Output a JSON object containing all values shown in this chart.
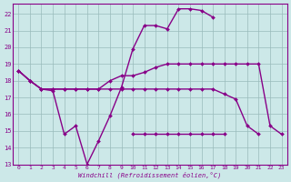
{
  "xlabel": "Windchill (Refroidissement éolien,°C)",
  "background_color": "#cce8e8",
  "grid_color": "#99bbbb",
  "line_color": "#880088",
  "x_values": [
    0,
    1,
    2,
    3,
    4,
    5,
    6,
    7,
    8,
    9,
    10,
    11,
    12,
    13,
    14,
    15,
    16,
    17,
    18,
    19,
    20,
    21,
    22,
    23
  ],
  "line_main": [
    18.6,
    18.0,
    17.5,
    17.4,
    14.8,
    15.3,
    13.0,
    14.4,
    15.9,
    17.6,
    19.9,
    21.3,
    21.3,
    21.1,
    22.3,
    22.3,
    22.2,
    21.8,
    null,
    null,
    null,
    null,
    null,
    null
  ],
  "line_upper": [
    18.6,
    18.0,
    17.5,
    17.5,
    17.5,
    17.5,
    17.5,
    17.5,
    18.0,
    18.3,
    18.3,
    18.5,
    18.8,
    19.0,
    19.0,
    19.0,
    19.0,
    19.0,
    19.0,
    19.0,
    19.0,
    19.0,
    15.3,
    14.8
  ],
  "line_mid": [
    18.6,
    18.0,
    17.5,
    17.5,
    17.5,
    17.5,
    17.5,
    17.5,
    17.5,
    17.5,
    17.5,
    17.5,
    17.5,
    17.5,
    17.5,
    17.5,
    17.5,
    17.5,
    17.2,
    16.9,
    15.3,
    14.8,
    null,
    null
  ],
  "line_low": [
    null,
    null,
    null,
    null,
    null,
    null,
    null,
    null,
    null,
    null,
    14.8,
    14.8,
    14.8,
    14.8,
    14.8,
    14.8,
    14.8,
    14.8,
    14.8,
    null,
    null,
    null,
    null,
    null
  ],
  "ylim": [
    13,
    22.6
  ],
  "yticks": [
    13,
    14,
    15,
    16,
    17,
    18,
    19,
    20,
    21,
    22
  ],
  "xlim": [
    -0.5,
    23.5
  ],
  "figwidth": 3.2,
  "figheight": 2.0,
  "dpi": 100
}
